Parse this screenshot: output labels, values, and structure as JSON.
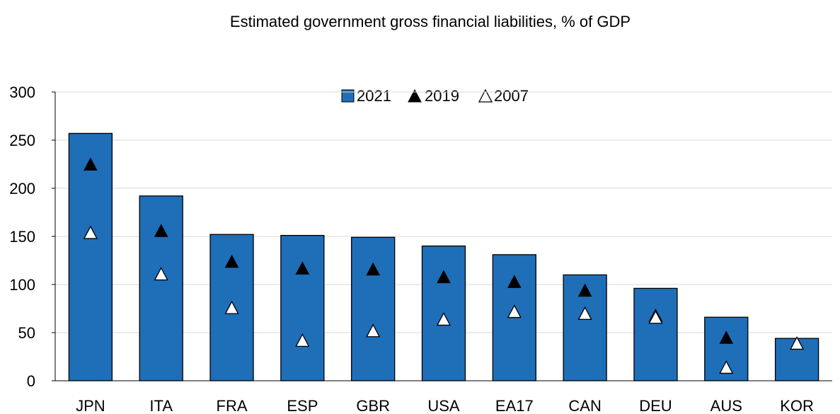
{
  "chart_data": {
    "type": "bar",
    "title": "Estimated government gross financial liabilities, % of GDP",
    "categories": [
      "JPN",
      "ITA",
      "FRA",
      "ESP",
      "GBR",
      "USA",
      "EA17",
      "CAN",
      "DEU",
      "AUS",
      "KOR"
    ],
    "series": [
      {
        "name": "2021",
        "kind": "bar",
        "color": "#1F6EB8",
        "values": [
          257,
          192,
          152,
          151,
          149,
          140,
          131,
          110,
          96,
          66,
          44
        ]
      },
      {
        "name": "2019",
        "kind": "marker-filled-triangle",
        "color": "#000000",
        "values": [
          225,
          156,
          124,
          117,
          116,
          108,
          103,
          94,
          68,
          45,
          39
        ]
      },
      {
        "name": "2007",
        "kind": "marker-open-triangle",
        "color": "#ffffff",
        "values": [
          154,
          111,
          76,
          42,
          52,
          64,
          72,
          70,
          66,
          14,
          39
        ]
      }
    ],
    "yticks": [
      "0",
      "50",
      "100",
      "150",
      "200",
      "250",
      "300"
    ],
    "ylim": [
      0,
      300
    ],
    "grid": true,
    "legend_position": "top-center"
  }
}
